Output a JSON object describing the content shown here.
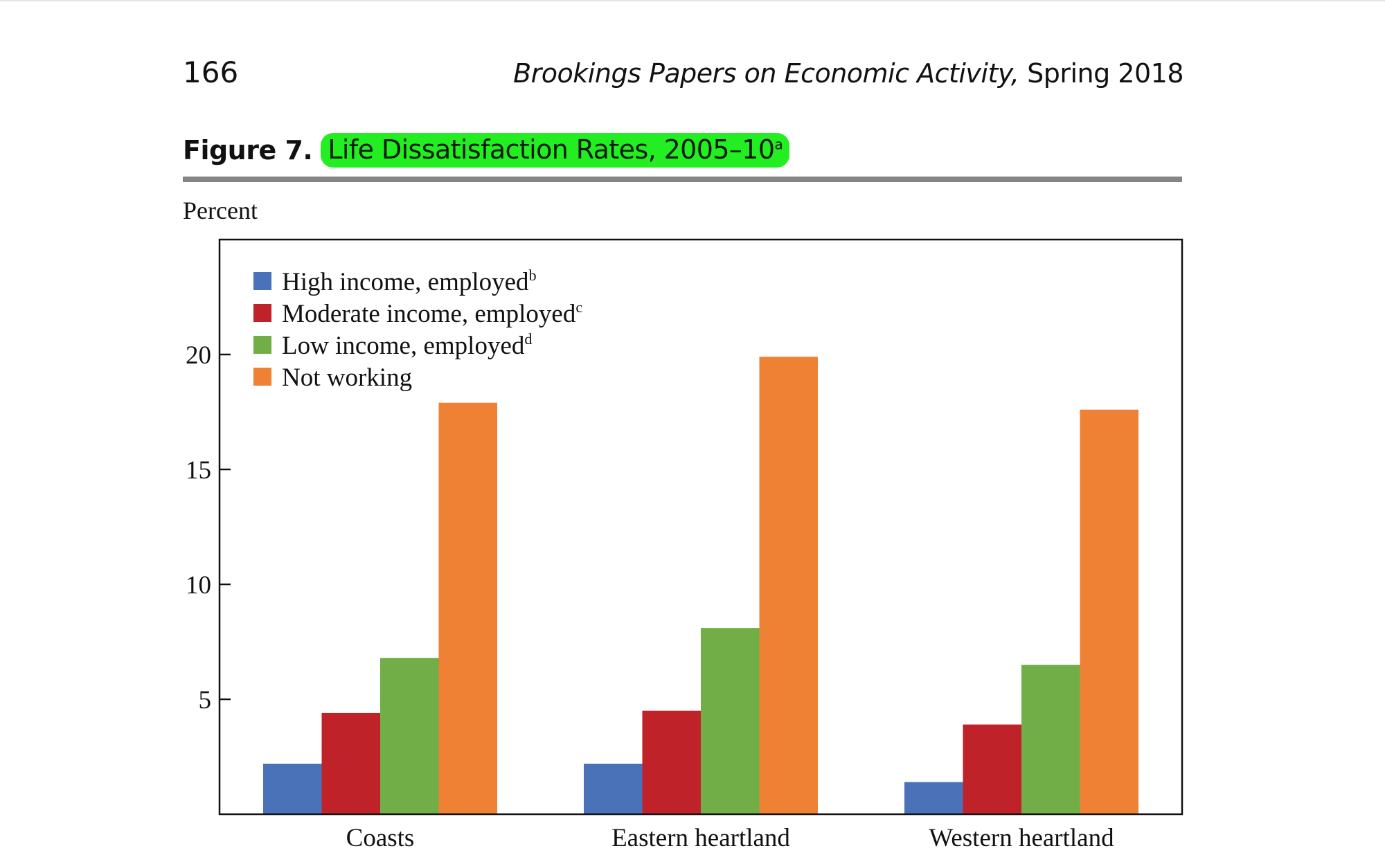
{
  "header": {
    "page_number": "166",
    "journal": "Brookings Papers on Economic Activity,",
    "issue": " Spring 2018"
  },
  "figure": {
    "label": "Figure 7.",
    "title": "Life Dissatisfaction Rates, 2005–10",
    "title_note": "a",
    "highlight_color": "#22ee22"
  },
  "chart_data": {
    "type": "bar",
    "title": "Life Dissatisfaction Rates, 2005–10",
    "ylabel": "Percent",
    "xlabel": "",
    "ylim": [
      0,
      25
    ],
    "yticks": [
      5,
      10,
      15,
      20
    ],
    "grid": false,
    "legend_position": "top-left",
    "categories": [
      "Coasts",
      "Eastern heartland",
      "Western heartland"
    ],
    "series": [
      {
        "name": "High income, employed",
        "note": "b",
        "color": "#4a72b8",
        "values": [
          2.2,
          2.2,
          1.4
        ]
      },
      {
        "name": "Moderate income, employed",
        "note": "c",
        "color": "#c0222a",
        "values": [
          4.4,
          4.5,
          3.9
        ]
      },
      {
        "name": "Low income, employed",
        "note": "d",
        "color": "#72ae48",
        "values": [
          6.8,
          8.1,
          6.5
        ]
      },
      {
        "name": "Not working",
        "note": "",
        "color": "#ee8133",
        "values": [
          17.9,
          19.9,
          17.6
        ]
      }
    ]
  }
}
